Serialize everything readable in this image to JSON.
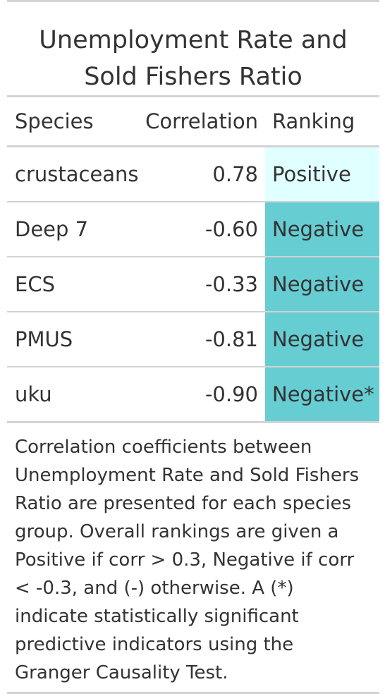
{
  "title": {
    "line1": "Unemployment Rate and",
    "line2": "Sold Fishers Ratio"
  },
  "columns": {
    "species": "Species",
    "correlation": "Correlation",
    "ranking": "Ranking"
  },
  "rows": [
    {
      "species": "crustaceans",
      "correlation": "0.78",
      "ranking": "Positive",
      "color": "#e0ffff"
    },
    {
      "species": "Deep 7",
      "correlation": "-0.60",
      "ranking": "Negative",
      "color": "#66cdd3"
    },
    {
      "species": "ECS",
      "correlation": "-0.33",
      "ranking": "Negative",
      "color": "#66cdd3"
    },
    {
      "species": "PMUS",
      "correlation": "-0.81",
      "ranking": "Negative",
      "color": "#66cdd3"
    },
    {
      "species": "uku",
      "correlation": "-0.90",
      "ranking": "Negative*",
      "color": "#66cdd3"
    }
  ],
  "footnote": "Correlation coefficients between Unemployment Rate and Sold Fishers Ratio are presented for each species group. Overall rankings are given a Positive if corr > 0.3, Negative if corr < -0.3, and (-) otherwise. A (*) indicate statistically significant predictive indicators using the Granger Causality Test."
}
